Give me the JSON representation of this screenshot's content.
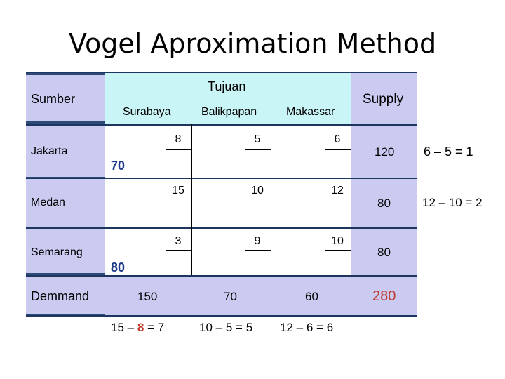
{
  "slide_title": "Vogel Aproximation Method",
  "header": {
    "sumber": "Sumber",
    "tujuan": "Tujuan",
    "supply": "Supply"
  },
  "destinations": [
    "Surabaya",
    "Balikpapan",
    "Makassar"
  ],
  "rows": [
    {
      "source": "Jakarta",
      "costs": [
        "8",
        "5",
        "6"
      ],
      "supply": "120",
      "allocation": "70",
      "row_penalty": "6 – 5 = 1"
    },
    {
      "source": "Medan",
      "costs": [
        "15",
        "10",
        "12"
      ],
      "supply": "80",
      "allocation": "",
      "row_penalty": "12 – 10 = 2"
    },
    {
      "source": "Semarang",
      "costs": [
        "3",
        "9",
        "10"
      ],
      "supply": "80",
      "allocation": "80",
      "row_penalty": ""
    }
  ],
  "demand": {
    "label": "Demmand",
    "values": [
      "150",
      "70",
      "60"
    ],
    "total": "280"
  },
  "column_penalties": [
    {
      "a": "15",
      "b": "8",
      "result": "7"
    },
    {
      "a": "10",
      "b": "5",
      "result": "5"
    },
    {
      "a": "12",
      "b": "6",
      "result": "6"
    }
  ],
  "colors": {
    "dark_blue": "#2c4a78",
    "lavender": "#cbcbf2",
    "cyan": "#c9f5f7",
    "red": "#c0392b"
  }
}
